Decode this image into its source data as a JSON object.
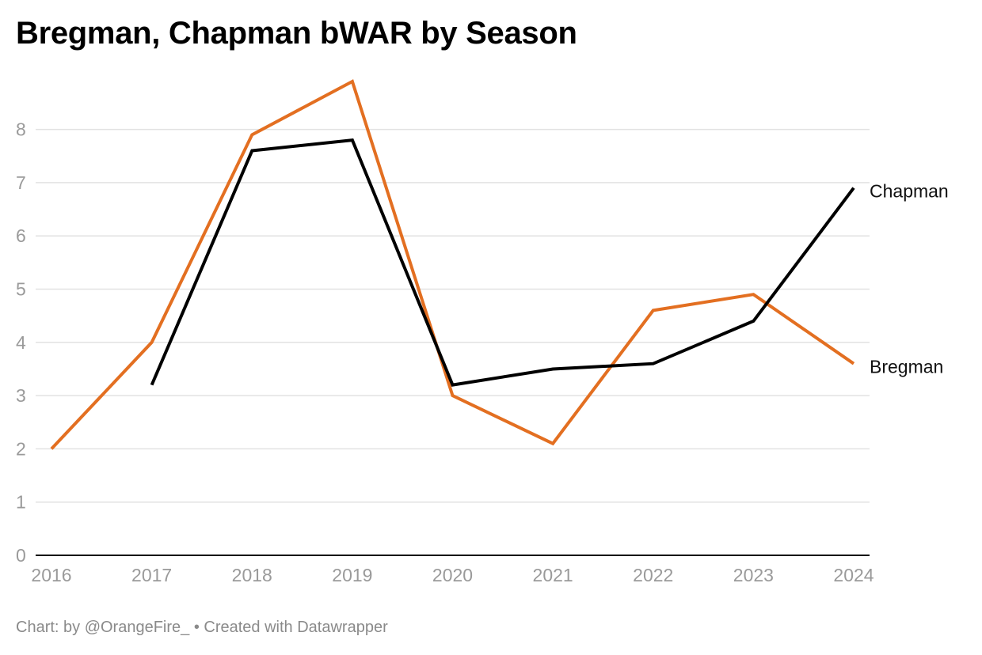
{
  "chart_data": {
    "type": "line",
    "title": "Bregman, Chapman bWAR by Season",
    "xlabel": "",
    "ylabel": "",
    "x": [
      2016,
      2017,
      2018,
      2019,
      2020,
      2021,
      2022,
      2023,
      2024
    ],
    "x_tick_labels": [
      "2016",
      "2017",
      "2018",
      "2019",
      "2020",
      "2021",
      "2022",
      "2023",
      "2024"
    ],
    "y_ticks": [
      0,
      1,
      2,
      3,
      4,
      5,
      6,
      7,
      8
    ],
    "y_tick_labels": [
      "0",
      "1",
      "2",
      "3",
      "4",
      "5",
      "6",
      "7",
      "8"
    ],
    "ylim": [
      0,
      9
    ],
    "grid": true,
    "legend": "direct labels at line ends",
    "series": [
      {
        "name": "Bregman",
        "color": "#e36f21",
        "x": [
          2016,
          2017,
          2018,
          2019,
          2020,
          2021,
          2022,
          2023,
          2024
        ],
        "values": [
          2.0,
          4.0,
          7.9,
          8.9,
          3.0,
          2.1,
          4.6,
          4.9,
          3.6
        ]
      },
      {
        "name": "Chapman",
        "color": "#000000",
        "x": [
          2017,
          2018,
          2019,
          2020,
          2021,
          2022,
          2023,
          2024
        ],
        "values": [
          3.2,
          7.6,
          7.8,
          3.2,
          3.5,
          3.6,
          4.4,
          6.9
        ]
      }
    ]
  },
  "footer": "Chart: by @OrangeFire_ • Created with Datawrapper",
  "colors": {
    "gridline": "#e2e2e2",
    "axis_baseline": "#000000",
    "tick_text": "#9a9a9a"
  }
}
